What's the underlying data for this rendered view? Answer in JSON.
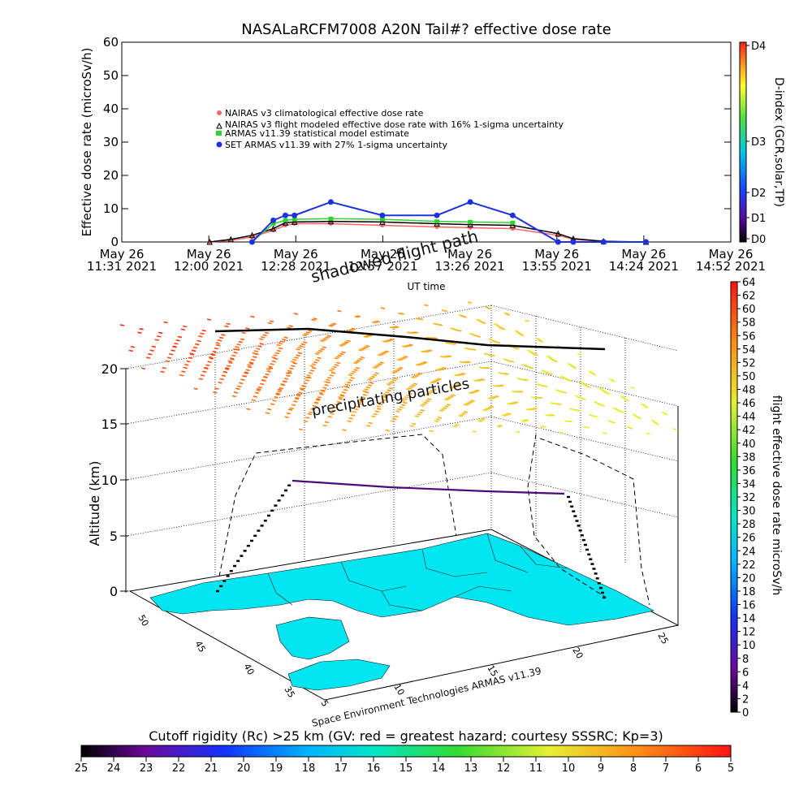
{
  "top_chart": {
    "title": "NASALaRCFM7008   A20N Tail#? effective dose rate",
    "ylabel": "Effective dose rate (microSv/h)",
    "xlabel": "UT time",
    "right_axis_label": "D-index (GCR,solar,TP)",
    "d_index_ticks": [
      "D4",
      "D3",
      "D2",
      "D1",
      "D0"
    ],
    "legend": [
      "NAIRAS v3 climatological effective dose rate",
      "NAIRAS v3 flight modeled effective dose rate with 16% 1-sigma uncertainty",
      "ARMAS v11.39 statistical model estimate",
      "SET ARMAS v11.39 with 27% 1-sigma uncertainty"
    ],
    "legend_colors": [
      "#ff6464",
      "#000000",
      "#32d232",
      "#1e32dc"
    ]
  },
  "chart_data": [
    {
      "type": "line",
      "title": "NASALaRCFM7008   A20N Tail#? effective dose rate",
      "xlabel": "UT time",
      "ylabel": "Effective dose rate (microSv/h)",
      "ylim": [
        0,
        60
      ],
      "yticks": [
        0,
        10,
        20,
        30,
        40,
        50,
        60
      ],
      "xlim": [
        "11:31",
        "14:52"
      ],
      "x_tick_labels": [
        [
          "May 26",
          "11:31 2021"
        ],
        [
          "May 26",
          "12:00 2021"
        ],
        [
          "May 26",
          "12:28 2021"
        ],
        [
          "May 26",
          "12:57 2021"
        ],
        [
          "May 26",
          "13:26 2021"
        ],
        [
          "May 26",
          "13:55 2021"
        ],
        [
          "May 26",
          "14:24 2021"
        ],
        [
          "May 26",
          "14:52 2021"
        ]
      ],
      "x": [
        "12:00",
        "12:07",
        "12:14",
        "12:21",
        "12:25",
        "12:28",
        "12:40",
        "12:57",
        "13:15",
        "13:26",
        "13:40",
        "13:55",
        "14:00",
        "14:10",
        "14:24"
      ],
      "series": [
        {
          "name": "NAIRAS v3 climatological effective dose rate",
          "values": [
            0,
            0.5,
            1.5,
            3.5,
            5.0,
            5.5,
            5.5,
            5.0,
            4.5,
            4.3,
            4.0,
            2.0,
            0.8,
            0.1,
            0
          ]
        },
        {
          "name": "NAIRAS v3 flight modeled effective dose rate with 16% 1-sigma uncertainty",
          "values": [
            0,
            0.8,
            2.0,
            4.0,
            5.8,
            6.0,
            6.2,
            6.0,
            5.5,
            5.2,
            5.0,
            2.5,
            1.0,
            0.2,
            0
          ]
        },
        {
          "name": "ARMAS v11.39 statistical model estimate",
          "values": [
            null,
            null,
            0,
            5.5,
            6.5,
            6.8,
            7.0,
            6.8,
            6.2,
            6.0,
            5.8,
            null,
            null,
            null,
            null
          ]
        },
        {
          "name": "SET ARMAS v11.39 with 27% 1-sigma uncertainty",
          "values": [
            null,
            null,
            0,
            6.5,
            8.0,
            8.0,
            12.0,
            8.0,
            8.0,
            12.0,
            8.0,
            0,
            0,
            0,
            0
          ]
        }
      ],
      "right_axis": {
        "label": "D-index (GCR,solar,TP)",
        "ticks": [
          "D0",
          "D1",
          "D2",
          "D3",
          "D4"
        ]
      }
    },
    {
      "type": "scatter",
      "title": "",
      "zlabel": "Altitude (km)",
      "zticks": [
        0,
        5,
        10,
        15,
        20
      ],
      "lat_ticks": [
        35,
        40,
        45,
        50
      ],
      "lon_ticks": [
        5,
        10,
        15,
        20,
        25
      ],
      "colorbar_label": "flight effective dose rate microSv/h",
      "colorbar_ticks": [
        0,
        2,
        4,
        6,
        8,
        10,
        12,
        14,
        16,
        18,
        20,
        22,
        24,
        26,
        28,
        30,
        32,
        34,
        36,
        38,
        40,
        42,
        44,
        46,
        48,
        50,
        52,
        54,
        56,
        58,
        60,
        62,
        64
      ]
    }
  ],
  "plot3d": {
    "annotations": [
      "shadowed flight path",
      "precipitating particles"
    ],
    "altitude_label": "Altitude (km)",
    "credit": "Space Environment Technologies ARMAS v11.39",
    "colorbar_label": "flight effective dose rate microSv/h"
  },
  "bottom_bar": {
    "caption": "Cutoff rigidity (Rc) >25 km (GV: red = greatest hazard; courtesy SSSRC; Kp=3)",
    "ticks": [
      25,
      24,
      23,
      22,
      21,
      20,
      19,
      18,
      17,
      16,
      15,
      14,
      13,
      12,
      11,
      10,
      9,
      8,
      7,
      6,
      5
    ]
  }
}
